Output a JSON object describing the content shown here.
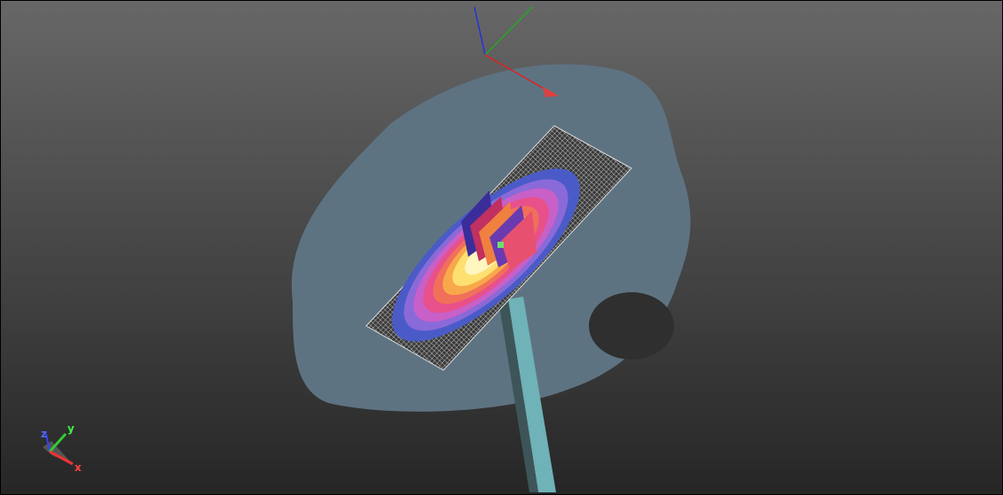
{
  "triad": {
    "x": "x",
    "y": "y",
    "z": "z"
  }
}
